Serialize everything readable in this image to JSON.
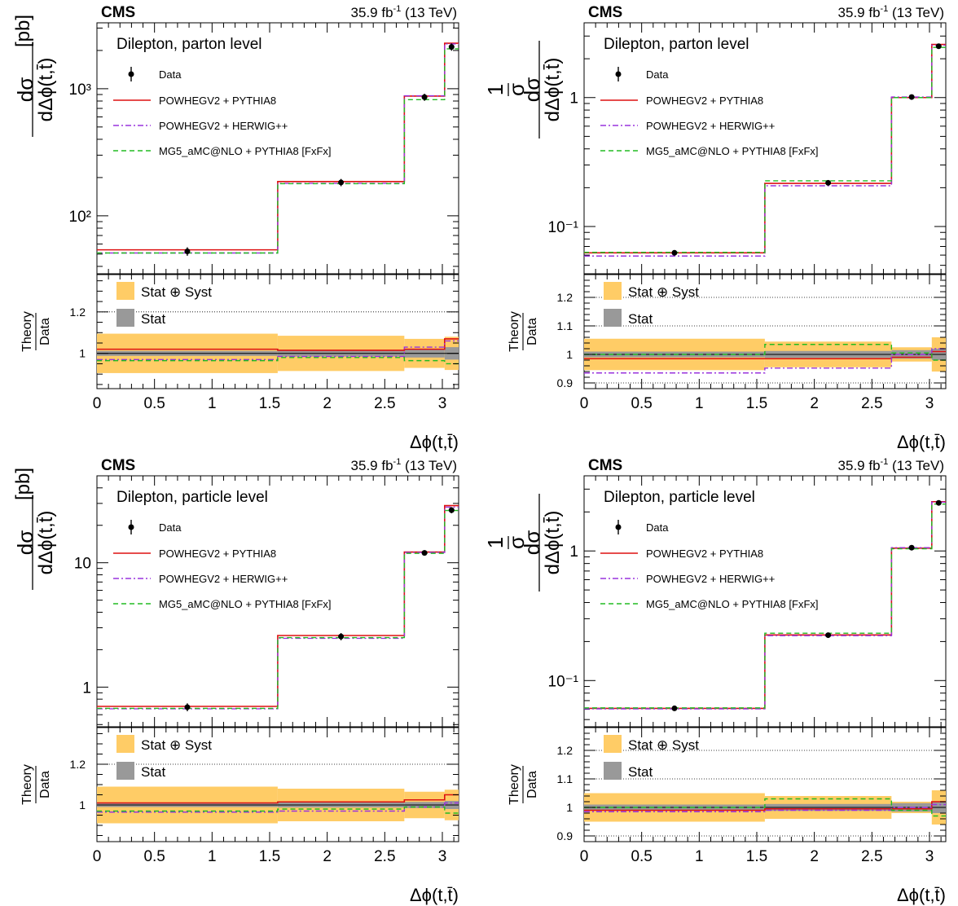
{
  "figure": {
    "experiment_label": "CMS",
    "luminosity_label": "35.9 fb",
    "luminosity_exponent": "-1",
    "energy_label": " (13 TeV)",
    "x_axis_label": "Δϕ(t,t̄)",
    "ratio_y_label_top": "Theory",
    "ratio_y_label_bottom": "Data",
    "legend": {
      "data": "Data",
      "powheg_pythia": "POWHEGV2 + PYTHIA8",
      "powheg_herwig": "POWHEGV2 + HERWIG++",
      "mg5": "MG5_aMC@NLO + PYTHIA8 [FxFx]",
      "stat_syst": "Stat ⊕ Syst",
      "stat": "Stat"
    },
    "colors": {
      "data": "#000000",
      "powheg_pythia": "#dd1111",
      "powheg_herwig": "#9933dd",
      "mg5": "#22bb22",
      "band_stat_syst": "#ffcc66",
      "band_stat": "#999999"
    }
  },
  "chart_data": [
    {
      "type": "line",
      "panel": "top-left",
      "title": "Dilepton, parton level",
      "ylabel": "dσ / dΔϕ(t,t̄) [pb]",
      "log_scale": true,
      "xlim": [
        0,
        3.1416
      ],
      "ylim": [
        35,
        3300
      ],
      "y_tick_values": [
        100,
        1000
      ],
      "y_tick_labels": [
        "10²",
        "10³"
      ],
      "x_tick_labels": [
        "0",
        "0.5",
        "1",
        "1.5",
        "2",
        "2.5",
        "3"
      ],
      "bin_edges": [
        0,
        1.57,
        2.67,
        3.02,
        3.1416
      ],
      "x_centers": [
        0.785,
        2.12,
        2.845,
        3.08
      ],
      "data": [
        52.5,
        183,
        858,
        2130
      ],
      "data_err": [
        4,
        12,
        55,
        140
      ],
      "series": [
        {
          "name": "POWHEGV2 + PYTHIA8",
          "values": [
            54,
            186,
            875,
            2280
          ]
        },
        {
          "name": "POWHEGV2 + HERWIG++",
          "values": [
            51,
            180,
            880,
            2250
          ]
        },
        {
          "name": "MG5_aMC@NLO + PYTHIA8 [FxFx]",
          "values": [
            51,
            179,
            820,
            2060
          ]
        }
      ],
      "ratio": {
        "ylim": [
          0.83,
          1.38
        ],
        "y_ticks": [
          1.0,
          1.2
        ],
        "y_tick_labels": [
          "1",
          "1.2"
        ],
        "stat_syst": [
          0.095,
          0.085,
          0.07,
          0.08
        ],
        "stat": [
          0.012,
          0.015,
          0.02,
          0.03
        ],
        "series": [
          [
            1.02,
            1.015,
            1.02,
            1.07
          ],
          [
            0.97,
            0.985,
            1.03,
            1.06
          ],
          [
            0.965,
            0.98,
            0.965,
            0.95
          ]
        ]
      }
    },
    {
      "type": "line",
      "panel": "top-right",
      "title": "Dilepton, parton level",
      "ylabel": "1/σ dσ / dΔϕ(t,t̄)",
      "log_scale": true,
      "xlim": [
        0,
        3.1416
      ],
      "ylim": [
        0.043,
        3.8
      ],
      "y_tick_values": [
        0.1,
        1
      ],
      "y_tick_labels": [
        "10⁻¹",
        "1"
      ],
      "x_tick_labels": [
        "0",
        "0.5",
        "1",
        "1.5",
        "2",
        "2.5",
        "3"
      ],
      "bin_edges": [
        0,
        1.57,
        2.67,
        3.02,
        3.1416
      ],
      "x_centers": [
        0.785,
        2.12,
        2.845,
        3.08
      ],
      "data": [
        0.0625,
        0.218,
        1.01,
        2.5
      ],
      "data_err": [
        0.002,
        0.005,
        0.015,
        0.05
      ],
      "series": [
        {
          "name": "POWHEGV2 + PYTHIA8",
          "values": [
            0.0625,
            0.216,
            1.0,
            2.58
          ]
        },
        {
          "name": "POWHEGV2 + HERWIG++",
          "values": [
            0.059,
            0.207,
            1.01,
            2.55
          ]
        },
        {
          "name": "MG5_aMC@NLO + PYTHIA8 [FxFx]",
          "values": [
            0.063,
            0.226,
            1.0,
            2.45
          ]
        }
      ],
      "ratio": {
        "ylim": [
          0.88,
          1.28
        ],
        "y_ticks": [
          0.9,
          1.0,
          1.1,
          1.2
        ],
        "y_tick_labels": [
          "0.9",
          "1",
          "1.1",
          "1.2"
        ],
        "stat_syst": [
          0.055,
          0.045,
          0.025,
          0.06
        ],
        "stat": [
          0.01,
          0.012,
          0.015,
          0.02
        ],
        "series": [
          [
            0.985,
            0.985,
            0.99,
            1.01
          ],
          [
            0.935,
            0.952,
            1.0,
            1.02
          ],
          [
            1.0,
            1.035,
            1.005,
            0.98
          ]
        ]
      }
    },
    {
      "type": "line",
      "panel": "bottom-left",
      "title": "Dilepton, particle level",
      "ylabel": "dσ / dΔϕ(t,t̄) [pb]",
      "log_scale": true,
      "xlim": [
        0,
        3.1416
      ],
      "ylim": [
        0.48,
        50
      ],
      "y_tick_values": [
        1,
        10
      ],
      "y_tick_labels": [
        "1",
        "10"
      ],
      "x_tick_labels": [
        "0",
        "0.5",
        "1",
        "1.5",
        "2",
        "2.5",
        "3"
      ],
      "bin_edges": [
        0,
        1.57,
        2.67,
        3.02,
        3.1416
      ],
      "x_centers": [
        0.785,
        2.12,
        2.845,
        3.08
      ],
      "data": [
        0.69,
        2.55,
        12.0,
        26.5
      ],
      "data_err": [
        0.05,
        0.17,
        0.6,
        1.5
      ],
      "series": [
        {
          "name": "POWHEGV2 + PYTHIA8",
          "values": [
            0.7,
            2.6,
            12.2,
            28.8
          ]
        },
        {
          "name": "POWHEGV2 + HERWIG++",
          "values": [
            0.67,
            2.47,
            12.1,
            28.0
          ]
        },
        {
          "name": "MG5_aMC@NLO + PYTHIA8 [FxFx]",
          "values": [
            0.675,
            2.5,
            11.9,
            26.3
          ]
        }
      ],
      "ratio": {
        "ylim": [
          0.82,
          1.38
        ],
        "y_ticks": [
          1.0,
          1.2
        ],
        "y_tick_labels": [
          "1",
          "1.2"
        ],
        "stat_syst": [
          0.09,
          0.08,
          0.065,
          0.075
        ],
        "stat": [
          0.01,
          0.012,
          0.015,
          0.02
        ],
        "series": [
          [
            1.01,
            1.015,
            1.025,
            1.05
          ],
          [
            0.965,
            0.97,
            0.99,
            1.01
          ],
          [
            0.97,
            0.98,
            0.99,
            0.96
          ]
        ]
      }
    },
    {
      "type": "line",
      "panel": "bottom-right",
      "title": "Dilepton, particle level",
      "ylabel": "1/σ dσ / dΔϕ(t,t̄)",
      "log_scale": true,
      "xlim": [
        0,
        3.1416
      ],
      "ylim": [
        0.044,
        3.8
      ],
      "y_tick_values": [
        0.1,
        1
      ],
      "y_tick_labels": [
        "10⁻¹",
        "1"
      ],
      "x_tick_labels": [
        "0",
        "0.5",
        "1",
        "1.5",
        "2",
        "2.5",
        "3"
      ],
      "bin_edges": [
        0,
        1.57,
        2.67,
        3.02,
        3.1416
      ],
      "x_centers": [
        0.785,
        2.12,
        2.845,
        3.08
      ],
      "data": [
        0.061,
        0.224,
        1.06,
        2.35
      ],
      "data_err": [
        0.0015,
        0.004,
        0.015,
        0.04
      ],
      "series": [
        {
          "name": "POWHEGV2 + PYTHIA8",
          "values": [
            0.061,
            0.225,
            1.05,
            2.4
          ]
        },
        {
          "name": "POWHEGV2 + HERWIG++",
          "values": [
            0.0605,
            0.222,
            1.06,
            2.38
          ]
        },
        {
          "name": "MG5_aMC@NLO + PYTHIA8 [FxFx]",
          "values": [
            0.0615,
            0.232,
            1.04,
            2.3
          ]
        }
      ],
      "ratio": {
        "ylim": [
          0.88,
          1.28
        ],
        "y_ticks": [
          0.9,
          1.0,
          1.1,
          1.2
        ],
        "y_tick_labels": [
          "0.9",
          "1",
          "1.1",
          "1.2"
        ],
        "stat_syst": [
          0.05,
          0.04,
          0.02,
          0.06
        ],
        "stat": [
          0.01,
          0.012,
          0.015,
          0.02
        ],
        "series": [
          [
            0.99,
            0.995,
            0.995,
            1.02
          ],
          [
            0.985,
            0.99,
            1.0,
            1.01
          ],
          [
            1.0,
            1.03,
            0.99,
            0.97
          ]
        ]
      }
    }
  ]
}
